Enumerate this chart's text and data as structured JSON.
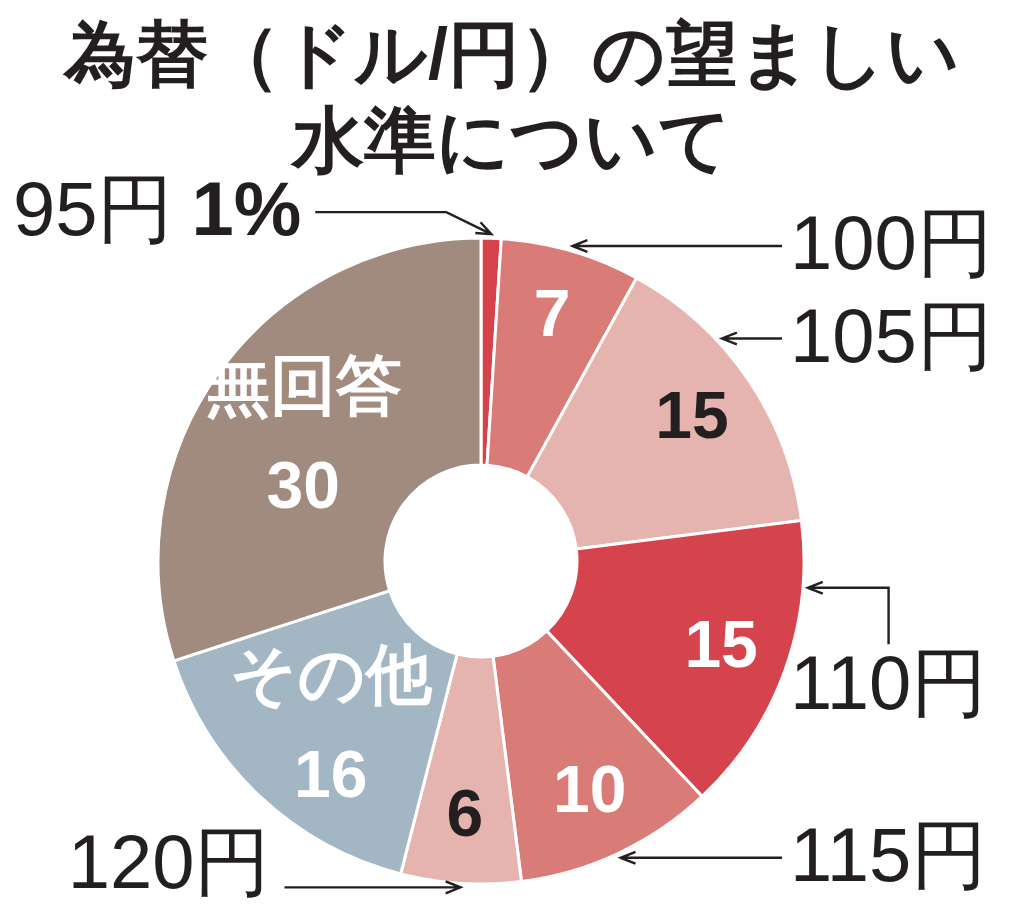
{
  "chart_data": {
    "type": "donut",
    "title": "為替（ドル/円）の望ましい水準について",
    "categories": [
      "95円",
      "100円",
      "105円",
      "110円",
      "115円",
      "120円",
      "その他",
      "無回答"
    ],
    "values": [
      1,
      7,
      15,
      15,
      10,
      6,
      16,
      30
    ],
    "colors": [
      "#d6424c",
      "#d97b76",
      "#e6b4ae",
      "#d5434d",
      "#d97b76",
      "#e6b4ae",
      "#a3b6c4",
      "#a18a7e"
    ],
    "value_labels": [
      "1%",
      "7",
      "15",
      "15",
      "10",
      "6",
      "16",
      "30"
    ]
  }
}
